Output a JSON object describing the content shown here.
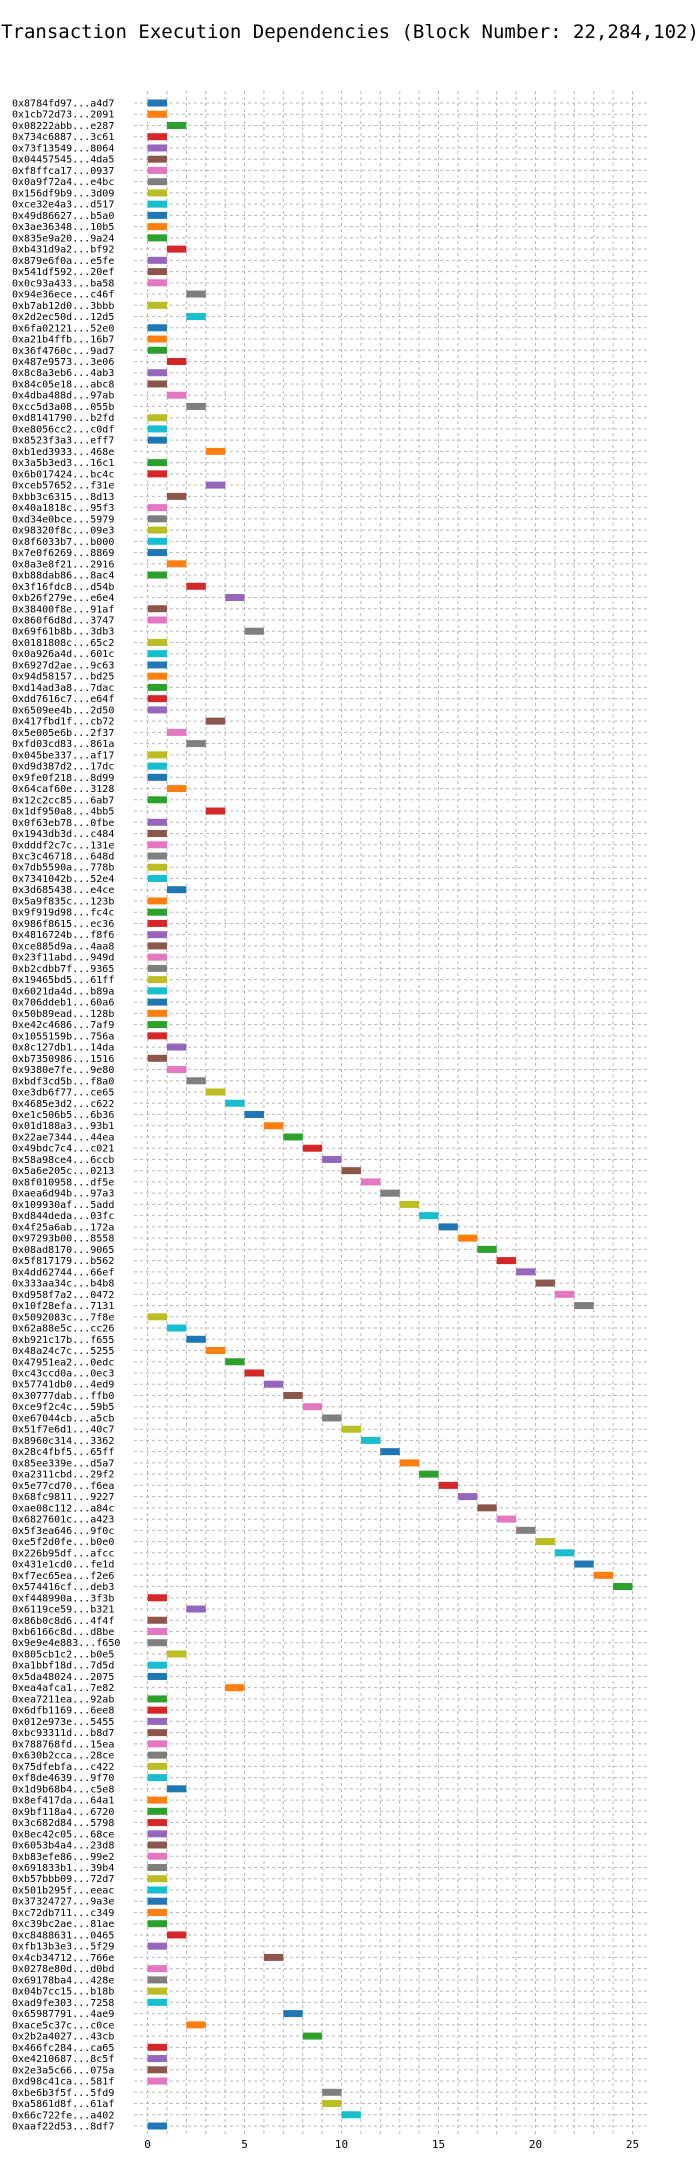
{
  "chart_data": {
    "type": "bar",
    "orientation": "horizontal",
    "title": "Transaction Execution Dependencies (Block Number: 22,284,102)",
    "xlabel": "",
    "ylabel": "",
    "xlim": [
      -0.7,
      25.8
    ],
    "x_ticks": [
      0,
      5,
      10,
      15,
      20,
      25
    ],
    "grid": true,
    "bar_length": 1,
    "palette": [
      "#1f77b4",
      "#ff7f0e",
      "#2ca02c",
      "#d62728",
      "#9467bd",
      "#8c564b",
      "#e377c2",
      "#7f7f7f",
      "#bcbd22",
      "#17becf"
    ],
    "transactions": [
      {
        "label": "0x8784fd97...a4d7",
        "start": 0
      },
      {
        "label": "0x1cb72d73...2091",
        "start": 0
      },
      {
        "label": "0x08222abb...e287",
        "start": 1
      },
      {
        "label": "0x734c6887...3c61",
        "start": 0
      },
      {
        "label": "0x73f13549...8064",
        "start": 0
      },
      {
        "label": "0x04457545...4da5",
        "start": 0
      },
      {
        "label": "0xf8ffca17...0937",
        "start": 0
      },
      {
        "label": "0x0a9f72a4...e4bc",
        "start": 0
      },
      {
        "label": "0x156df9b9...3d09",
        "start": 0
      },
      {
        "label": "0xce32e4a3...d517",
        "start": 0
      },
      {
        "label": "0x49d86627...b5a0",
        "start": 0
      },
      {
        "label": "0x3ae36348...10b5",
        "start": 0
      },
      {
        "label": "0x835e9a20...9a24",
        "start": 0
      },
      {
        "label": "0xb431d9a2...bf92",
        "start": 1
      },
      {
        "label": "0x879e6f0a...e5fe",
        "start": 0
      },
      {
        "label": "0x541df592...20ef",
        "start": 0
      },
      {
        "label": "0x0c93a433...ba58",
        "start": 0
      },
      {
        "label": "0x94e36ece...c46f",
        "start": 2
      },
      {
        "label": "0xb7ab12d0...3bbb",
        "start": 0
      },
      {
        "label": "0x2d2ec50d...12d5",
        "start": 2
      },
      {
        "label": "0x6fa02121...52e0",
        "start": 0
      },
      {
        "label": "0xa21b4ffb...16b7",
        "start": 0
      },
      {
        "label": "0x36f4760c...9ad7",
        "start": 0
      },
      {
        "label": "0x487e9573...3e06",
        "start": 1
      },
      {
        "label": "0x8c8a3eb6...4ab3",
        "start": 0
      },
      {
        "label": "0x84c05e18...abc8",
        "start": 0
      },
      {
        "label": "0x4dba488d...97ab",
        "start": 1
      },
      {
        "label": "0xcc5d3a08...055b",
        "start": 2
      },
      {
        "label": "0xd8141790...b2fd",
        "start": 0
      },
      {
        "label": "0xe8056cc2...c0df",
        "start": 0
      },
      {
        "label": "0x8523f3a3...eff7",
        "start": 0
      },
      {
        "label": "0xb1ed3933...468e",
        "start": 3
      },
      {
        "label": "0x3a5b3ed3...16c1",
        "start": 0
      },
      {
        "label": "0x6b017424...bc4c",
        "start": 0
      },
      {
        "label": "0xceb57652...f31e",
        "start": 3
      },
      {
        "label": "0xbb3c6315...8d13",
        "start": 1
      },
      {
        "label": "0x40a1818c...95f3",
        "start": 0
      },
      {
        "label": "0xd34e0bce...5979",
        "start": 0
      },
      {
        "label": "0x98320f8c...09e3",
        "start": 0
      },
      {
        "label": "0x8f6033b7...b000",
        "start": 0
      },
      {
        "label": "0x7e0f6269...8869",
        "start": 0
      },
      {
        "label": "0x8a3e8f21...2916",
        "start": 1
      },
      {
        "label": "0xb88dab86...8ac4",
        "start": 0
      },
      {
        "label": "0x3f16fdc8...d54b",
        "start": 2
      },
      {
        "label": "0xb26f279e...e6e4",
        "start": 4
      },
      {
        "label": "0x38400f8e...91af",
        "start": 0
      },
      {
        "label": "0x860f6d8d...3747",
        "start": 0
      },
      {
        "label": "0x69f61b8b...3db3",
        "start": 5
      },
      {
        "label": "0x0181808c...65c2",
        "start": 0
      },
      {
        "label": "0x0a926a4d...601c",
        "start": 0
      },
      {
        "label": "0x6927d2ae...9c63",
        "start": 0
      },
      {
        "label": "0x94d58157...bd25",
        "start": 0
      },
      {
        "label": "0xd14ad3a8...7dac",
        "start": 0
      },
      {
        "label": "0xdd7616c7...e64f",
        "start": 0
      },
      {
        "label": "0x6509ee4b...2d50",
        "start": 0
      },
      {
        "label": "0x417fbd1f...cb72",
        "start": 3
      },
      {
        "label": "0x5e005e6b...2f37",
        "start": 1
      },
      {
        "label": "0xfd03cd83...861a",
        "start": 2
      },
      {
        "label": "0x045be337...af17",
        "start": 0
      },
      {
        "label": "0xd9d387d2...17dc",
        "start": 0
      },
      {
        "label": "0x9fe0f218...8d99",
        "start": 0
      },
      {
        "label": "0x64caf60e...3128",
        "start": 1
      },
      {
        "label": "0x12c2cc85...6ab7",
        "start": 0
      },
      {
        "label": "0x1df950a8...4bb5",
        "start": 3
      },
      {
        "label": "0x0f63eb78...0fbe",
        "start": 0
      },
      {
        "label": "0x1943db3d...c484",
        "start": 0
      },
      {
        "label": "0xdddf2c7c...131e",
        "start": 0
      },
      {
        "label": "0xc3c46718...648d",
        "start": 0
      },
      {
        "label": "0x7db5590a...778b",
        "start": 0
      },
      {
        "label": "0x7341042b...52e4",
        "start": 0
      },
      {
        "label": "0x3d685438...e4ce",
        "start": 1
      },
      {
        "label": "0x5a9f835c...123b",
        "start": 0
      },
      {
        "label": "0x9f919d98...fc4c",
        "start": 0
      },
      {
        "label": "0x986f8615...ec36",
        "start": 0
      },
      {
        "label": "0x4816724b...f8f6",
        "start": 0
      },
      {
        "label": "0xce885d9a...4aa8",
        "start": 0
      },
      {
        "label": "0x23f11abd...949d",
        "start": 0
      },
      {
        "label": "0xb2cdbb7f...9365",
        "start": 0
      },
      {
        "label": "0x19465bd5...61ff",
        "start": 0
      },
      {
        "label": "0x6021da4d...b89a",
        "start": 0
      },
      {
        "label": "0x706ddeb1...60a6",
        "start": 0
      },
      {
        "label": "0x50b89ead...128b",
        "start": 0
      },
      {
        "label": "0xe42c4686...7af9",
        "start": 0
      },
      {
        "label": "0x1055159b...756a",
        "start": 0
      },
      {
        "label": "0x8c127db1...14da",
        "start": 1
      },
      {
        "label": "0xb7350986...1516",
        "start": 0
      },
      {
        "label": "0x9380e7fe...9e80",
        "start": 1
      },
      {
        "label": "0xbdf3cd5b...f8a0",
        "start": 2
      },
      {
        "label": "0xe3db6f77...ce65",
        "start": 3
      },
      {
        "label": "0x4685e3d2...c622",
        "start": 4
      },
      {
        "label": "0xe1c506b5...6b36",
        "start": 5
      },
      {
        "label": "0x01d188a3...93b1",
        "start": 6
      },
      {
        "label": "0x22ae7344...44ea",
        "start": 7
      },
      {
        "label": "0x49bdc7c4...c021",
        "start": 8
      },
      {
        "label": "0x58a98ce4...6ccb",
        "start": 9
      },
      {
        "label": "0x5a6e205c...0213",
        "start": 10
      },
      {
        "label": "0x8f010958...df5e",
        "start": 11
      },
      {
        "label": "0xaea6d94b...97a3",
        "start": 12
      },
      {
        "label": "0x109930af...5add",
        "start": 13
      },
      {
        "label": "0xd844deda...03fc",
        "start": 14
      },
      {
        "label": "0x4f25a6ab...172a",
        "start": 15
      },
      {
        "label": "0x97293b00...8558",
        "start": 16
      },
      {
        "label": "0x08ad8170...9065",
        "start": 17
      },
      {
        "label": "0x5f817179...b562",
        "start": 18
      },
      {
        "label": "0x4dd62744...66ef",
        "start": 19
      },
      {
        "label": "0x333aa34c...b4b8",
        "start": 20
      },
      {
        "label": "0xd958f7a2...0472",
        "start": 21
      },
      {
        "label": "0x10f28efa...7131",
        "start": 22
      },
      {
        "label": "0x5092083c...7f8e",
        "start": 0
      },
      {
        "label": "0x62a88e5c...cc26",
        "start": 1
      },
      {
        "label": "0xb921c17b...f655",
        "start": 2
      },
      {
        "label": "0x48a24c7c...5255",
        "start": 3
      },
      {
        "label": "0x47951ea2...0edc",
        "start": 4
      },
      {
        "label": "0xc43ccd0a...0ec3",
        "start": 5
      },
      {
        "label": "0x57741db0...4ed9",
        "start": 6
      },
      {
        "label": "0x30777dab...ffb0",
        "start": 7
      },
      {
        "label": "0xce9f2c4c...59b5",
        "start": 8
      },
      {
        "label": "0xe67044cb...a5cb",
        "start": 9
      },
      {
        "label": "0x51f7e6d1...40c7",
        "start": 10
      },
      {
        "label": "0x8960c314...3362",
        "start": 11
      },
      {
        "label": "0x28c4fbf5...65ff",
        "start": 12
      },
      {
        "label": "0x85ee339e...d5a7",
        "start": 13
      },
      {
        "label": "0xa2311cbd...29f2",
        "start": 14
      },
      {
        "label": "0x5e77cd70...f6ea",
        "start": 15
      },
      {
        "label": "0x68fc9811...9227",
        "start": 16
      },
      {
        "label": "0xae08c112...a84c",
        "start": 17
      },
      {
        "label": "0x6827601c...a423",
        "start": 18
      },
      {
        "label": "0x5f3ea646...9f0c",
        "start": 19
      },
      {
        "label": "0xe5f2d0fe...b0e0",
        "start": 20
      },
      {
        "label": "0x226b95df...afcc",
        "start": 21
      },
      {
        "label": "0x431e1cd0...fe1d",
        "start": 22
      },
      {
        "label": "0xf7ec65ea...f2e6",
        "start": 23
      },
      {
        "label": "0x574416cf...deb3",
        "start": 24
      },
      {
        "label": "0xf448990a...3f3b",
        "start": 0
      },
      {
        "label": "0x6119ce59...b321",
        "start": 2
      },
      {
        "label": "0x86b0c8d6...4f4f",
        "start": 0
      },
      {
        "label": "0xb6166c8d...d8be",
        "start": 0
      },
      {
        "label": "0x9e9e4e883...f650",
        "start": 0
      },
      {
        "label": "0x805cb1c2...b0e5",
        "start": 1
      },
      {
        "label": "0xa1bbf18d...7d5d",
        "start": 0
      },
      {
        "label": "0x5da48024...2075",
        "start": 0
      },
      {
        "label": "0xea4afca1...7e82",
        "start": 4
      },
      {
        "label": "0xea7211ea...92ab",
        "start": 0
      },
      {
        "label": "0x6dfb1169...6ee8",
        "start": 0
      },
      {
        "label": "0x012e973e...5455",
        "start": 0
      },
      {
        "label": "0xbc93311d...b8d7",
        "start": 0
      },
      {
        "label": "0x788768fd...15ea",
        "start": 0
      },
      {
        "label": "0x630b2cca...28ce",
        "start": 0
      },
      {
        "label": "0x75dfebfa...c422",
        "start": 0
      },
      {
        "label": "0xf8de4639...9f70",
        "start": 0
      },
      {
        "label": "0x1d9b68b4...c5e8",
        "start": 1
      },
      {
        "label": "0x8ef417da...64a1",
        "start": 0
      },
      {
        "label": "0x9bf118a4...6720",
        "start": 0
      },
      {
        "label": "0x3c682d84...5798",
        "start": 0
      },
      {
        "label": "0x8ec42c05...68ce",
        "start": 0
      },
      {
        "label": "0x6053b4a4...23d8",
        "start": 0
      },
      {
        "label": "0xb83efe86...99e2",
        "start": 0
      },
      {
        "label": "0x691833b1...39b4",
        "start": 0
      },
      {
        "label": "0xb57bbb09...72d7",
        "start": 0
      },
      {
        "label": "0x501b295f...eeac",
        "start": 0
      },
      {
        "label": "0x37324727...9a3e",
        "start": 0
      },
      {
        "label": "0xc72db711...c349",
        "start": 0
      },
      {
        "label": "0xc39bc2ae...81ae",
        "start": 0
      },
      {
        "label": "0xc8488631...0465",
        "start": 1
      },
      {
        "label": "0xfb13b3e3...5f29",
        "start": 0
      },
      {
        "label": "0x4cb34712...766e",
        "start": 6
      },
      {
        "label": "0x0278e80d...d0bd",
        "start": 0
      },
      {
        "label": "0x69178ba4...428e",
        "start": 0
      },
      {
        "label": "0x04b7cc15...b18b",
        "start": 0
      },
      {
        "label": "0xad9fe303...7258",
        "start": 0
      },
      {
        "label": "0x65987791...4ae9",
        "start": 7
      },
      {
        "label": "0xace5c37c...c0ce",
        "start": 2
      },
      {
        "label": "0x2b2a4027...43cb",
        "start": 8
      },
      {
        "label": "0x466fc284...ca65",
        "start": 0
      },
      {
        "label": "0xe4210687...8c5f",
        "start": 0
      },
      {
        "label": "0x2e3a5c66...075a",
        "start": 0
      },
      {
        "label": "0xd98c41ca...581f",
        "start": 0
      },
      {
        "label": "0xbe6b3f5f...5fd9",
        "start": 9
      },
      {
        "label": "0xa5861d8f...61af",
        "start": 9
      },
      {
        "label": "0x66c722fe...a402",
        "start": 10
      },
      {
        "label": "0xaaf22d53...8df7",
        "start": 0
      }
    ]
  }
}
